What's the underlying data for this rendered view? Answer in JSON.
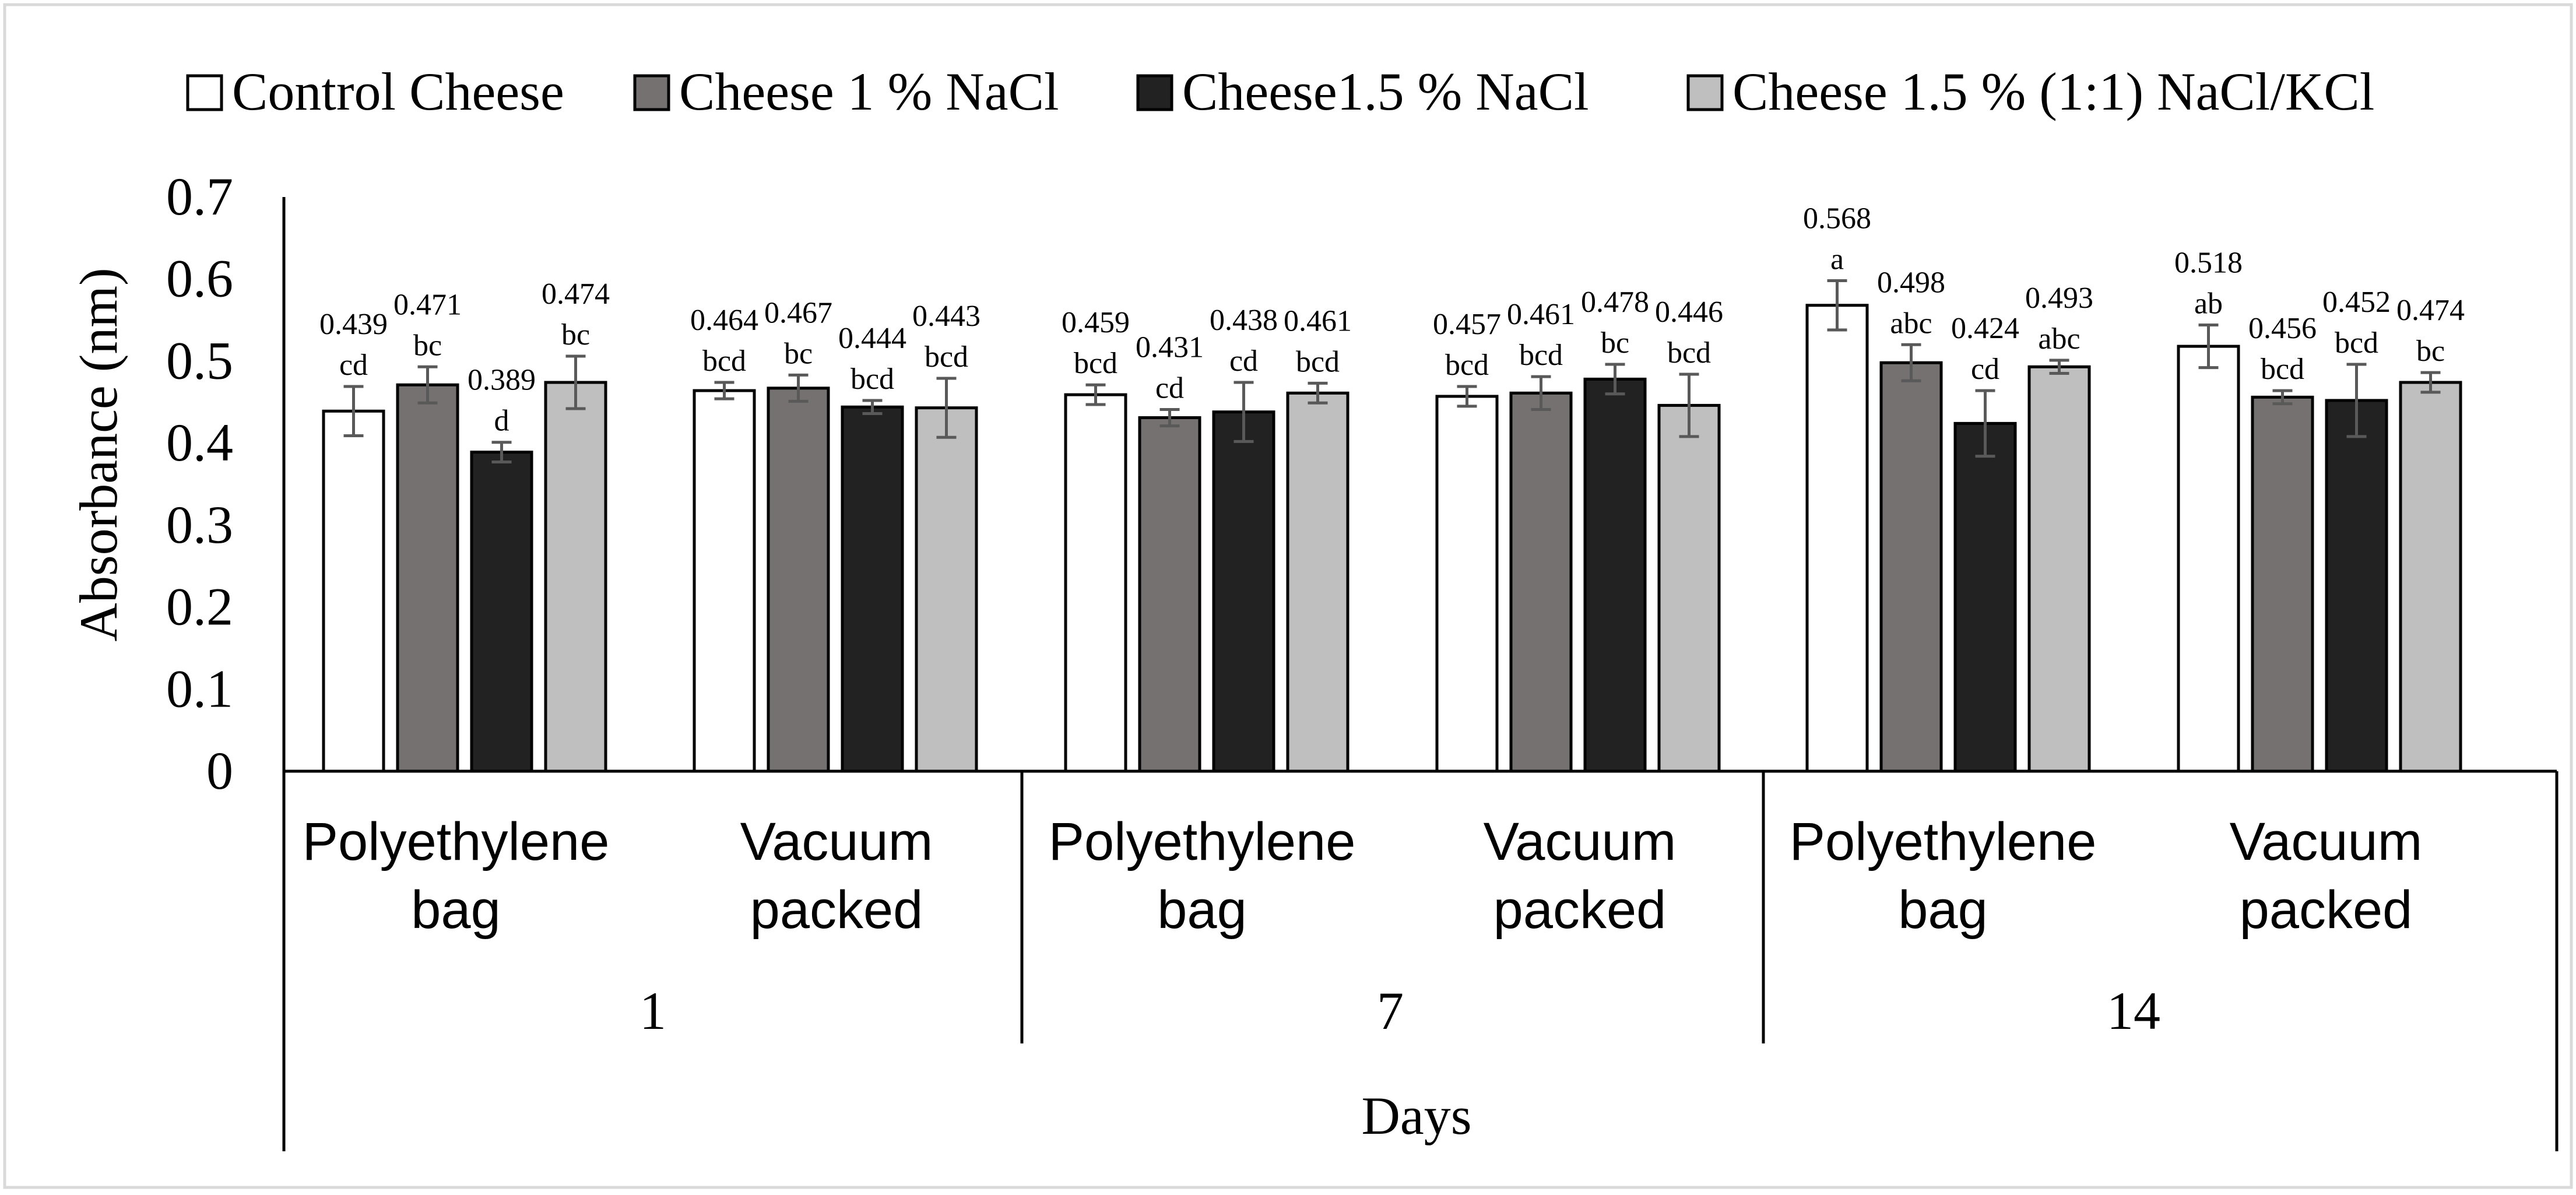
{
  "chart_data": {
    "type": "bar",
    "ylabel": "Absorbance (nm)",
    "xlabel": "Days",
    "ylim": [
      0,
      0.7
    ],
    "ytick_step": 0.1,
    "yticks": [
      "0",
      "0.1",
      "0.2",
      "0.3",
      "0.4",
      "0.5",
      "0.6",
      "0.7"
    ],
    "legend_position": "top",
    "groups": [
      {
        "day": "1",
        "packaging": [
          {
            "lines": [
              "Polyethylene",
              "bag"
            ],
            "bars": [
              {
                "value": 0.439,
                "err": 0.03,
                "value_label": "0.439",
                "letters": "cd"
              },
              {
                "value": 0.471,
                "err": 0.022,
                "value_label": "0.471",
                "letters": "bc"
              },
              {
                "value": 0.389,
                "err": 0.012,
                "value_label": "0.389",
                "letters": "d"
              },
              {
                "value": 0.474,
                "err": 0.032,
                "value_label": "0.474",
                "letters": "bc"
              }
            ]
          },
          {
            "lines": [
              "Vacuum",
              "packed"
            ],
            "bars": [
              {
                "value": 0.464,
                "err": 0.01,
                "value_label": "0.464",
                "letters": "bcd"
              },
              {
                "value": 0.467,
                "err": 0.016,
                "value_label": "0.467",
                "letters": "bc"
              },
              {
                "value": 0.444,
                "err": 0.008,
                "value_label": "0.444",
                "letters": "bcd"
              },
              {
                "value": 0.443,
                "err": 0.036,
                "value_label": "0.443",
                "letters": "bcd"
              }
            ]
          }
        ]
      },
      {
        "day": "7",
        "packaging": [
          {
            "lines": [
              "Polyethylene",
              "bag"
            ],
            "bars": [
              {
                "value": 0.459,
                "err": 0.012,
                "value_label": "0.459",
                "letters": "bcd"
              },
              {
                "value": 0.431,
                "err": 0.01,
                "value_label": "0.431",
                "letters": "cd"
              },
              {
                "value": 0.438,
                "err": 0.036,
                "value_label": "0.438",
                "letters": "cd"
              },
              {
                "value": 0.461,
                "err": 0.012,
                "value_label": "0.461",
                "letters": "bcd"
              }
            ]
          },
          {
            "lines": [
              "Vacuum",
              "packed"
            ],
            "bars": [
              {
                "value": 0.457,
                "err": 0.012,
                "value_label": "0.457",
                "letters": "bcd"
              },
              {
                "value": 0.461,
                "err": 0.02,
                "value_label": "0.461",
                "letters": "bcd"
              },
              {
                "value": 0.478,
                "err": 0.018,
                "value_label": "0.478",
                "letters": "bc"
              },
              {
                "value": 0.446,
                "err": 0.038,
                "value_label": "0.446",
                "letters": "bcd"
              }
            ]
          }
        ]
      },
      {
        "day": "14",
        "packaging": [
          {
            "lines": [
              "Polyethylene",
              "bag"
            ],
            "bars": [
              {
                "value": 0.568,
                "err": 0.03,
                "value_label": "0.568",
                "letters": "a"
              },
              {
                "value": 0.498,
                "err": 0.022,
                "value_label": "0.498",
                "letters": "abc"
              },
              {
                "value": 0.424,
                "err": 0.04,
                "value_label": "0.424",
                "letters": "cd"
              },
              {
                "value": 0.493,
                "err": 0.008,
                "value_label": "0.493",
                "letters": "abc"
              }
            ]
          },
          {
            "lines": [
              "Vacuum",
              "packed"
            ],
            "bars": [
              {
                "value": 0.518,
                "err": 0.026,
                "value_label": "0.518",
                "letters": "ab"
              },
              {
                "value": 0.456,
                "err": 0.008,
                "value_label": "0.456",
                "letters": "bcd"
              },
              {
                "value": 0.452,
                "err": 0.044,
                "value_label": "0.452",
                "letters": "bcd"
              },
              {
                "value": 0.474,
                "err": 0.012,
                "value_label": "0.474",
                "letters": "bc"
              }
            ]
          }
        ]
      }
    ],
    "series": [
      {
        "name": "Control Cheese",
        "color": "#ffffff"
      },
      {
        "name": "Cheese 1 % NaCl",
        "color": "#767171"
      },
      {
        "name": "Cheese1.5 % NaCl",
        "color": "#222222"
      },
      {
        "name": "Cheese 1.5 % (1:1) NaCl/KCl",
        "color": "#bfbfbf"
      }
    ]
  }
}
